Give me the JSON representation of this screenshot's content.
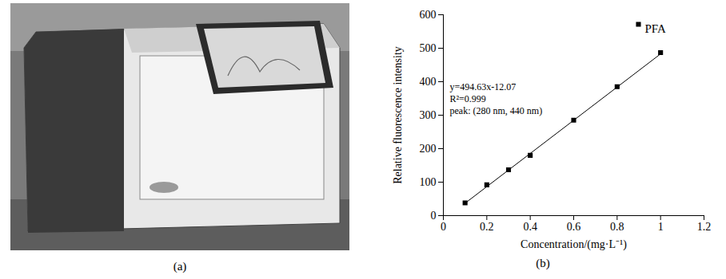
{
  "chart_data": {
    "type": "scatter",
    "caption": "(b)",
    "x_label": "Concentration/(mg·L⁻¹)",
    "y_label": "Relative fluorescence intensity",
    "annotations": [
      "y=494.63x-12.07",
      "R²=0.999",
      "peak: (280 nm, 440 nm)"
    ],
    "series": [
      {
        "name": "PFA",
        "type": "scatter",
        "marker": "square",
        "color": "#000000",
        "x": [
          0.1,
          0.2,
          0.3,
          0.4,
          0.6,
          0.8,
          1.0
        ],
        "values": [
          38,
          92,
          137,
          180,
          285,
          385,
          487
        ]
      },
      {
        "type": "line",
        "line_style": "solid",
        "color": "#000000",
        "x": [
          0.1,
          1.0
        ],
        "values": [
          37,
          483
        ]
      }
    ],
    "xlim": [
      0,
      1.2
    ],
    "xticks": [
      0,
      0.2,
      0.4,
      0.6,
      0.8,
      1.0,
      1.2
    ],
    "ylim": [
      0,
      600
    ],
    "yticks": [
      0,
      100,
      200,
      300,
      400,
      500,
      600
    ],
    "grid": false,
    "legend": "upper right"
  },
  "photo": {
    "caption": "(a)"
  }
}
